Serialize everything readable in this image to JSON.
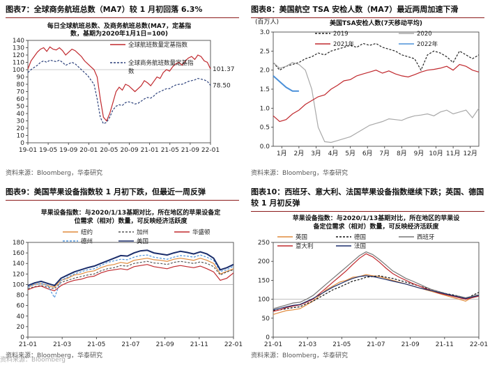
{
  "panels": [
    {
      "title": "图表7：全球商务航班总数（MA7）较 1 月初回落 6.3%",
      "source": "资料来源：Bloomberg，华泰研究",
      "chart_data": {
        "type": "line",
        "title_lines": [
          "每日全球航班总数、及商务航班总数(MA7，定基指",
          "数，基期为2020年1月1日=100)"
        ],
        "ylim": [
          0,
          140
        ],
        "yticks": [
          0,
          10,
          20,
          30,
          40,
          50,
          60,
          70,
          80,
          90,
          100,
          110,
          120,
          130,
          140
        ],
        "xticks": [
          "19-01",
          "19-05",
          "19-09",
          "20-01",
          "20-05",
          "20-09",
          "21-01",
          "21-05",
          "21-09",
          "22-01"
        ],
        "annotations": [
          "101.37",
          "78.50"
        ],
        "series": [
          {
            "name": "全球航班数量定基指数",
            "color": "#c0282d",
            "dash": false,
            "values": [
              101,
              112,
              118,
              124,
              128,
              130,
              125,
              131,
              128,
              127,
              130,
              126,
              120,
              124,
              128,
              126,
              122,
              118,
              112,
              108,
              104,
              100,
              90,
              60,
              35,
              30,
              40,
              55,
              70,
              76,
              72,
              80,
              78,
              74,
              70,
              74,
              78,
              85,
              82,
              78,
              84,
              90,
              88,
              96,
              100,
              98,
              104,
              108,
              110,
              106,
              112,
              116,
              118,
              114,
              120,
              118,
              112,
              110,
              101
            ]
          },
          {
            "name": "全球商务航班数量定基指\n数",
            "color": "#2a3f7a",
            "dash": true,
            "values": [
              96,
              100,
              103,
              106,
              110,
              112,
              110,
              113,
              112,
              111,
              113,
              110,
              106,
              108,
              110,
              108,
              104,
              100,
              96,
              92,
              86,
              80,
              60,
              35,
              26,
              28,
              35,
              45,
              50,
              52,
              51,
              55,
              56,
              55,
              53,
              54,
              57,
              60,
              62,
              61,
              64,
              68,
              70,
              72,
              74,
              74,
              77,
              79,
              80,
              80,
              82,
              84,
              85,
              86,
              88,
              87,
              86,
              84,
              78.5
            ]
          }
        ]
      }
    },
    {
      "title": "图表8：美国航空 TSA 安检人数（MA7）最近两周加速下滑",
      "source": "资料来源：Bloomberg，华泰研究",
      "chart_data": {
        "type": "line",
        "title_lines": [
          "美国TSA安检人数(7天移动平均)"
        ],
        "unit": "(百万人)",
        "ylim": [
          0,
          3
        ],
        "yticks": [
          "0.0",
          "0.5",
          "1.0",
          "1.5",
          "2.0",
          "2.5",
          "3.0"
        ],
        "xticks": [
          "1月",
          "2月",
          "3月",
          "4月",
          "5月",
          "6月",
          "7月",
          "8月",
          "9月",
          "10月",
          "11月",
          "12月"
        ],
        "series": [
          {
            "name": "2019",
            "color": "#222222",
            "dash": true,
            "values": [
              2.2,
              2.0,
              2.1,
              2.15,
              2.2,
              2.3,
              2.35,
              2.45,
              2.4,
              2.5,
              2.55,
              2.6,
              2.65,
              2.6,
              2.7,
              2.65,
              2.7,
              2.6,
              2.55,
              2.5,
              2.4,
              2.35,
              2.3,
              2.0,
              2.4,
              2.5,
              2.45,
              2.35,
              2.2,
              2.5,
              2.4,
              2.3,
              2.4
            ]
          },
          {
            "name": "2020",
            "color": "#a8a8a8",
            "dash": false,
            "values": [
              2.2,
              2.05,
              2.1,
              2.2,
              2.15,
              2.0,
              1.5,
              0.5,
              0.12,
              0.1,
              0.15,
              0.2,
              0.25,
              0.35,
              0.45,
              0.55,
              0.6,
              0.65,
              0.72,
              0.7,
              0.68,
              0.75,
              0.8,
              0.82,
              0.85,
              0.8,
              0.9,
              0.95,
              0.85,
              0.9,
              0.95,
              0.75,
              1.0
            ]
          },
          {
            "name": "2021年",
            "color": "#c0282d",
            "dash": false,
            "values": [
              0.8,
              0.65,
              0.7,
              0.85,
              0.95,
              1.1,
              1.2,
              1.3,
              1.35,
              1.5,
              1.6,
              1.72,
              1.75,
              1.85,
              1.9,
              1.95,
              2.0,
              1.92,
              1.98,
              1.9,
              1.85,
              1.82,
              1.88,
              1.95,
              2.0,
              2.02,
              2.05,
              2.1,
              2.0,
              2.15,
              2.1,
              2.0,
              1.95
            ]
          },
          {
            "name": "2022年",
            "color": "#4a90d9",
            "dash": false,
            "values": [
              1.85,
              1.7,
              1.55,
              1.45,
              1.45
            ]
          }
        ]
      }
    },
    {
      "title": "图表9：美国苹果设备指数较 1 月初下跌，但最近一周反弹",
      "source": "资料来源：Bloomberg，华泰研究",
      "chart_data": {
        "type": "line",
        "title_lines": [
          "苹果设备指数：与2020/1/13基期对比，所在地区的苹果设备定",
          "位需求（相对）数量，可反映经济活跃度"
        ],
        "ylim": [
          0,
          180
        ],
        "yticks": [
          0,
          20,
          40,
          60,
          80,
          100,
          120,
          140,
          160,
          180
        ],
        "xticks": [
          "21-01",
          "21-03",
          "21-05",
          "21-07",
          "21-09",
          "21-11",
          "22-01"
        ],
        "series": [
          {
            "name": "纽约",
            "color": "#e08a3c",
            "dash": false,
            "values": [
              95,
              100,
              102,
              98,
              95,
              108,
              112,
              118,
              120,
              124,
              126,
              132,
              136,
              138,
              142,
              140,
              146,
              148,
              150,
              147,
              146,
              144,
              148,
              150,
              148,
              146,
              150,
              146,
              140,
              120,
              125,
              130
            ]
          },
          {
            "name": "加州",
            "color": "#555555",
            "dash": true,
            "values": [
              92,
              96,
              98,
              95,
              92,
              104,
              108,
              112,
              115,
              118,
              120,
              126,
              130,
              132,
              136,
              135,
              140,
              142,
              144,
              141,
              140,
              138,
              142,
              144,
              142,
              140,
              143,
              140,
              134,
              118,
              124,
              128
            ]
          },
          {
            "name": "华盛顿",
            "color": "#c0282d",
            "dash": false,
            "values": [
              90,
              95,
              97,
              92,
              88,
              98,
              104,
              108,
              110,
              114,
              116,
              122,
              126,
              128,
              130,
              128,
              134,
              136,
              138,
              134,
              132,
              130,
              134,
              136,
              134,
              132,
              135,
              130,
              124,
              108,
              112,
              122
            ]
          },
          {
            "name": "德州",
            "color": "#4a90d9",
            "dash": true,
            "values": [
              95,
              100,
              102,
              98,
              75,
              108,
              114,
              120,
              124,
              128,
              130,
              136,
              142,
              145,
              148,
              147,
              152,
              155,
              156,
              152,
              150,
              148,
              152,
              155,
              154,
              152,
              156,
              152,
              146,
              125,
              128,
              135
            ]
          },
          {
            "name": "美国",
            "color": "#1a2d6b",
            "dash": false,
            "values": [
              98,
              103,
              106,
              102,
              98,
              112,
              118,
              124,
              128,
              132,
              135,
              140,
              145,
              150,
              155,
              154,
              160,
              164,
              165,
              160,
              158,
              156,
              160,
              163,
              161,
              158,
              162,
              158,
              150,
              128,
              132,
              138
            ]
          }
        ]
      }
    },
    {
      "title": "图表10：西班牙、意大利、法国苹果设备指数继续下跌；英国、德国较 1 月初反弹",
      "source": "资料来源：Bloomberg，华泰研究",
      "chart_data": {
        "type": "line",
        "title_lines": [
          "苹果设备指数：与2020/1/13基期对比，所在地区的苹果设",
          "备定位需求（相对）数量，可反映经济活跃度"
        ],
        "ylim": [
          0,
          250
        ],
        "yticks": [
          0,
          50,
          100,
          150,
          200,
          250
        ],
        "xticks": [
          "21-01",
          "21-03",
          "21-05",
          "21-07",
          "21-09",
          "21-11",
          "22-01"
        ],
        "series": [
          {
            "name": "英国",
            "color": "#e08a3c",
            "dash": false,
            "values": [
              60,
              65,
              70,
              72,
              75,
              85,
              95,
              110,
              125,
              135,
              145,
              150,
              158,
              160,
              165,
              162,
              160,
              155,
              150,
              145,
              140,
              135,
              130,
              125,
              120,
              115,
              110,
              105,
              100,
              95,
              105,
              110
            ]
          },
          {
            "name": "德国",
            "color": "#111111",
            "dash": true,
            "values": [
              70,
              72,
              75,
              78,
              80,
              88,
              95,
              105,
              115,
              125,
              132,
              140,
              148,
              152,
              158,
              160,
              162,
              158,
              155,
              150,
              145,
              140,
              135,
              130,
              125,
              120,
              115,
              112,
              108,
              100,
              110,
              118
            ]
          },
          {
            "name": "西班牙",
            "color": "#777777",
            "dash": false,
            "values": [
              75,
              80,
              85,
              90,
              92,
              100,
              110,
              125,
              140,
              155,
              170,
              185,
              200,
              215,
              225,
              218,
              205,
              190,
              175,
              165,
              155,
              148,
              140,
              132,
              125,
              120,
              115,
              110,
              108,
              104,
              108,
              112
            ]
          },
          {
            "name": "意大利",
            "color": "#c0282d",
            "dash": false,
            "values": [
              68,
              72,
              78,
              82,
              85,
              92,
              100,
              115,
              130,
              145,
              160,
              175,
              192,
              208,
              220,
              212,
              198,
              182,
              168,
              158,
              150,
              142,
              135,
              128,
              122,
              116,
              112,
              108,
              104,
              100,
              104,
              108
            ]
          },
          {
            "name": "法国",
            "color": "#1a2d6b",
            "dash": false,
            "values": [
              72,
              76,
              80,
              84,
              86,
              94,
              102,
              112,
              122,
              132,
              140,
              148,
              155,
              160,
              162,
              160,
              156,
              152,
              148,
              144,
              140,
              135,
              130,
              126,
              122,
              118,
              114,
              110,
              106,
              102,
              106,
              110
            ]
          }
        ]
      }
    }
  ],
  "watermark": "资料来源：Bloomberg"
}
